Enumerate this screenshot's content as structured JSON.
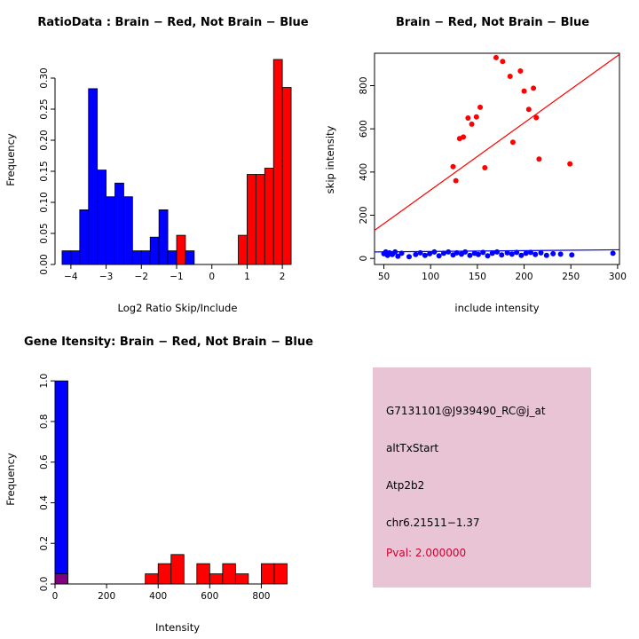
{
  "window": {
    "background": "#ffffff"
  },
  "colors": {
    "brain": "#ff0000",
    "not_brain": "#0000ff",
    "overlap": "#800080",
    "info_box_bg": "#e9c4d4",
    "pval_text": "#cc0033"
  },
  "chart_data": [
    {
      "type": "bar",
      "title": "RatioData : Brain − Red, Not Brain − Blue",
      "xlabel": "Log2 Ratio Skip/Include",
      "ylabel": "Frequency",
      "xlim": [
        -4.45,
        2.5
      ],
      "ylim": [
        0,
        0.34
      ],
      "xticks": [
        "−4",
        "−3",
        "−2",
        "−1",
        "0",
        "1",
        "2"
      ],
      "yticks": [
        "0.00",
        "0.05",
        "0.10",
        "0.15",
        "0.20",
        "0.25",
        "0.30"
      ],
      "grid": false,
      "box": false,
      "bin_width": 0.25,
      "bars": [
        {
          "x0": -4.25,
          "h": 0.022,
          "c": "#0000ff"
        },
        {
          "x0": -4.0,
          "h": 0.022,
          "c": "#0000ff"
        },
        {
          "x0": -3.75,
          "h": 0.088,
          "c": "#0000ff"
        },
        {
          "x0": -3.5,
          "h": 0.283,
          "c": "#0000ff"
        },
        {
          "x0": -3.25,
          "h": 0.152,
          "c": "#0000ff"
        },
        {
          "x0": -3.0,
          "h": 0.109,
          "c": "#0000ff"
        },
        {
          "x0": -2.75,
          "h": 0.131,
          "c": "#0000ff"
        },
        {
          "x0": -2.5,
          "h": 0.109,
          "c": "#0000ff"
        },
        {
          "x0": -2.25,
          "h": 0.022,
          "c": "#0000ff"
        },
        {
          "x0": -2.0,
          "h": 0.022,
          "c": "#0000ff"
        },
        {
          "x0": -1.75,
          "h": 0.044,
          "c": "#0000ff"
        },
        {
          "x0": -1.5,
          "h": 0.088,
          "c": "#0000ff"
        },
        {
          "x0": -1.25,
          "h": 0.022,
          "c": "#0000ff"
        },
        {
          "x0": -1.0,
          "h": 0.047,
          "c": "#ff0000"
        },
        {
          "x0": -0.75,
          "h": 0.022,
          "c": "#0000ff"
        },
        {
          "x0": 0.75,
          "h": 0.047,
          "c": "#ff0000"
        },
        {
          "x0": 1.0,
          "h": 0.145,
          "c": "#ff0000"
        },
        {
          "x0": 1.25,
          "h": 0.145,
          "c": "#ff0000"
        },
        {
          "x0": 1.5,
          "h": 0.155,
          "c": "#ff0000"
        },
        {
          "x0": 1.75,
          "h": 0.33,
          "c": "#ff0000"
        },
        {
          "x0": 2.0,
          "h": 0.285,
          "c": "#ff0000"
        }
      ]
    },
    {
      "type": "scatter",
      "title": "Brain − Red, Not Brain − Blue",
      "xlabel": "include intensity",
      "ylabel": "skip intensity",
      "xlim": [
        40,
        302
      ],
      "ylim": [
        -28,
        950
      ],
      "xticks": [
        "50",
        "100",
        "150",
        "200",
        "250",
        "300"
      ],
      "yticks": [
        "0",
        "200",
        "400",
        "600",
        "800"
      ],
      "grid": false,
      "box": true,
      "series": [
        {
          "name": "Brain",
          "color": "#ff0000",
          "points": [
            [
              127,
              360
            ],
            [
              124,
              425
            ],
            [
              131,
              555
            ],
            [
              135,
              562
            ],
            [
              140,
              650
            ],
            [
              144,
              622
            ],
            [
              149,
              655
            ],
            [
              153,
              700
            ],
            [
              158,
              420
            ],
            [
              170,
              930
            ],
            [
              177,
              912
            ],
            [
              185,
              843
            ],
            [
              188,
              538
            ],
            [
              196,
              868
            ],
            [
              200,
              775
            ],
            [
              205,
              690
            ],
            [
              210,
              788
            ],
            [
              213,
              652
            ],
            [
              216,
              460
            ],
            [
              249,
              438
            ]
          ]
        },
        {
          "name": "Not Brain",
          "color": "#0000ff",
          "points": [
            [
              50,
              22
            ],
            [
              52,
              30
            ],
            [
              54,
              14
            ],
            [
              56,
              26
            ],
            [
              59,
              18
            ],
            [
              62,
              30
            ],
            [
              65,
              10
            ],
            [
              69,
              24
            ],
            [
              77,
              8
            ],
            [
              84,
              18
            ],
            [
              89,
              26
            ],
            [
              94,
              14
            ],
            [
              99,
              22
            ],
            [
              104,
              30
            ],
            [
              109,
              12
            ],
            [
              114,
              24
            ],
            [
              119,
              30
            ],
            [
              124,
              16
            ],
            [
              128,
              26
            ],
            [
              133,
              20
            ],
            [
              137,
              30
            ],
            [
              142,
              14
            ],
            [
              147,
              24
            ],
            [
              151,
              18
            ],
            [
              156,
              28
            ],
            [
              161,
              12
            ],
            [
              166,
              24
            ],
            [
              171,
              30
            ],
            [
              176,
              16
            ],
            [
              182,
              26
            ],
            [
              187,
              20
            ],
            [
              192,
              28
            ],
            [
              197,
              14
            ],
            [
              202,
              24
            ],
            [
              207,
              28
            ],
            [
              212,
              18
            ],
            [
              218,
              26
            ],
            [
              224,
              14
            ],
            [
              231,
              22
            ],
            [
              239,
              20
            ],
            [
              251,
              16
            ],
            [
              295,
              24
            ]
          ]
        }
      ],
      "lines": [
        {
          "name": "brain-fit-line",
          "color": "#ff0000",
          "x1": 40,
          "y1": 130,
          "x2": 302,
          "y2": 945
        },
        {
          "name": "not-brain-fit-line",
          "color": "#0000ff",
          "x1": 40,
          "y1": 30,
          "x2": 302,
          "y2": 40
        }
      ]
    },
    {
      "type": "bar",
      "title": "Gene Itensity: Brain − Red, Not Brain − Blue",
      "xlabel": "Intensity",
      "ylabel": "Frequency",
      "xlim": [
        0,
        950
      ],
      "ylim": [
        0,
        1.04
      ],
      "xticks": [
        "0",
        "200",
        "400",
        "600",
        "800"
      ],
      "yticks": [
        "0.0",
        "0.2",
        "0.4",
        "0.6",
        "0.8",
        "1.0"
      ],
      "grid": false,
      "box": false,
      "bin_width": 50,
      "bars": [
        {
          "x0": 0,
          "h": 1.0,
          "c": "#0000ff"
        },
        {
          "x0": 0,
          "h": 0.05,
          "c": "#800080"
        },
        {
          "x0": 350,
          "h": 0.05,
          "c": "#ff0000"
        },
        {
          "x0": 400,
          "h": 0.1,
          "c": "#ff0000"
        },
        {
          "x0": 450,
          "h": 0.145,
          "c": "#ff0000"
        },
        {
          "x0": 550,
          "h": 0.1,
          "c": "#ff0000"
        },
        {
          "x0": 600,
          "h": 0.05,
          "c": "#ff0000"
        },
        {
          "x0": 650,
          "h": 0.1,
          "c": "#ff0000"
        },
        {
          "x0": 700,
          "h": 0.05,
          "c": "#ff0000"
        },
        {
          "x0": 800,
          "h": 0.1,
          "c": "#ff0000"
        },
        {
          "x0": 850,
          "h": 0.1,
          "c": "#ff0000"
        }
      ]
    }
  ],
  "info_box": {
    "bg_color": "#e9c4d4",
    "lines": [
      {
        "label": "probe-id",
        "text": "G7131101@J939490_RC@j_at",
        "color": "#000000"
      },
      {
        "label": "event-type",
        "text": "altTxStart",
        "color": "#000000"
      },
      {
        "label": "gene-symbol",
        "text": "Atp2b2",
        "color": "#000000"
      },
      {
        "label": "locus",
        "text": "chr6.21511−1.37",
        "color": "#000000"
      },
      {
        "label": "p-value",
        "text": "Pval: 2.000000",
        "color": "#cc0033"
      }
    ]
  }
}
